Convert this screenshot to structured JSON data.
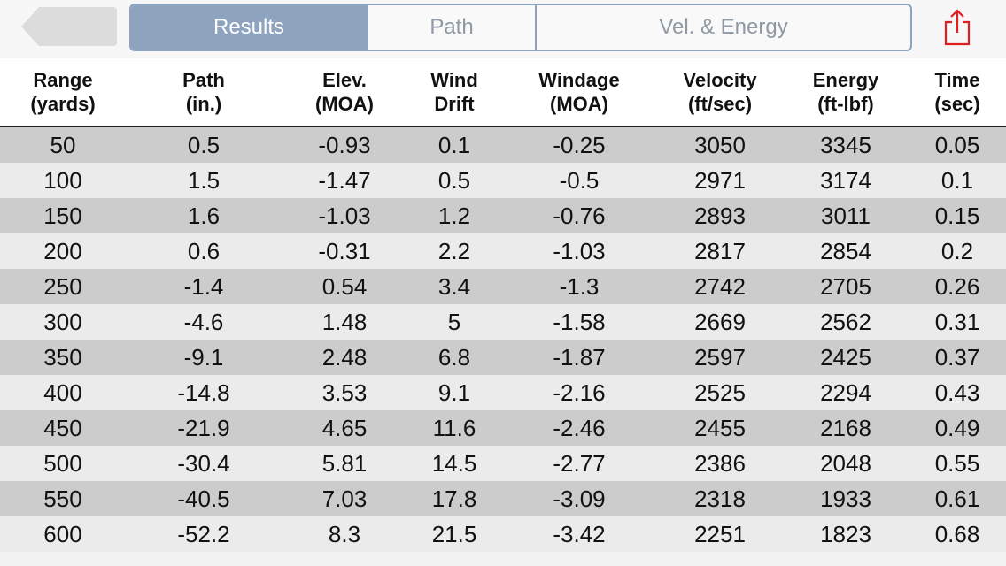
{
  "segments": [
    "Results",
    "Path",
    "Vel. & Energy"
  ],
  "active_segment": "Results",
  "icons": {
    "back": "back-arrow-icon",
    "share": "share-icon"
  },
  "colors": {
    "segment_accent": "#8ea3bd",
    "share_icon": "#e02020",
    "row_dark": "#cccccc",
    "row_light": "#ebebeb"
  },
  "table": {
    "headers": [
      "Range\n(yards)",
      "Path\n(in.)",
      "Elev.\n(MOA)",
      "Wind\nDrift",
      "Windage\n(MOA)",
      "Velocity\n(ft/sec)",
      "Energy\n(ft-lbf)",
      "Time\n(sec)"
    ],
    "rows": [
      [
        "50",
        "0.5",
        "-0.93",
        "0.1",
        "-0.25",
        "3050",
        "3345",
        "0.05"
      ],
      [
        "100",
        "1.5",
        "-1.47",
        "0.5",
        "-0.5",
        "2971",
        "3174",
        "0.1"
      ],
      [
        "150",
        "1.6",
        "-1.03",
        "1.2",
        "-0.76",
        "2893",
        "3011",
        "0.15"
      ],
      [
        "200",
        "0.6",
        "-0.31",
        "2.2",
        "-1.03",
        "2817",
        "2854",
        "0.2"
      ],
      [
        "250",
        "-1.4",
        "0.54",
        "3.4",
        "-1.3",
        "2742",
        "2705",
        "0.26"
      ],
      [
        "300",
        "-4.6",
        "1.48",
        "5",
        "-1.58",
        "2669",
        "2562",
        "0.31"
      ],
      [
        "350",
        "-9.1",
        "2.48",
        "6.8",
        "-1.87",
        "2597",
        "2425",
        "0.37"
      ],
      [
        "400",
        "-14.8",
        "3.53",
        "9.1",
        "-2.16",
        "2525",
        "2294",
        "0.43"
      ],
      [
        "450",
        "-21.9",
        "4.65",
        "11.6",
        "-2.46",
        "2455",
        "2168",
        "0.49"
      ],
      [
        "500",
        "-30.4",
        "5.81",
        "14.5",
        "-2.77",
        "2386",
        "2048",
        "0.55"
      ],
      [
        "550",
        "-40.5",
        "7.03",
        "17.8",
        "-3.09",
        "2318",
        "1933",
        "0.61"
      ],
      [
        "600",
        "-52.2",
        "8.3",
        "21.5",
        "-3.42",
        "2251",
        "1823",
        "0.68"
      ]
    ]
  }
}
